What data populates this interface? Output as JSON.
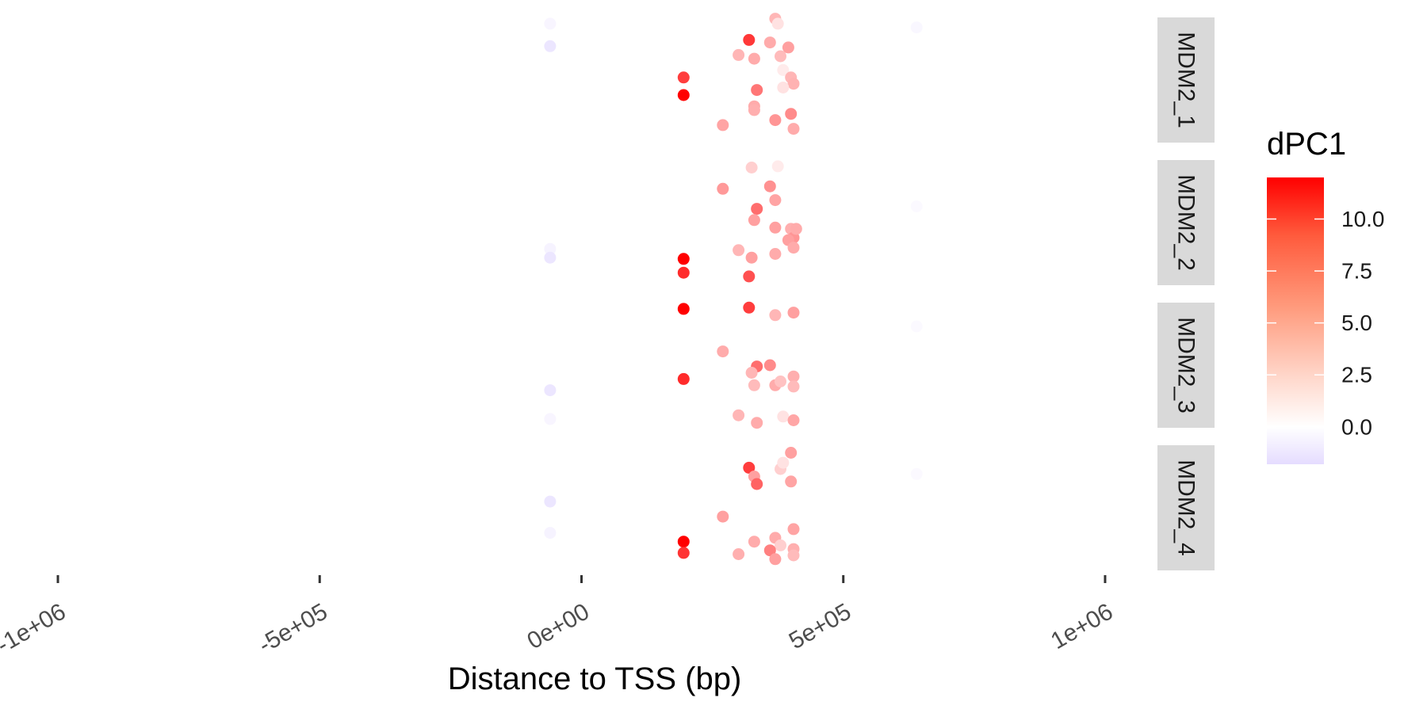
{
  "chart_data": {
    "type": "scatter",
    "xlabel": "Distance to TSS (bp)",
    "ylabel": "",
    "xlim": [
      -1050000,
      1100000
    ],
    "x_ticks": [
      -1000000,
      -500000,
      0,
      500000,
      1000000
    ],
    "x_tick_labels": [
      "-1e+06",
      "-5e+05",
      "0e+00",
      "5e+05",
      "1e+06"
    ],
    "grid": false,
    "legend": {
      "title": "dPC1",
      "placement": "right",
      "range": [
        -1.8,
        12
      ],
      "ticks": [
        0,
        2.5,
        5,
        7.5,
        10
      ],
      "tick_labels": [
        "0.0",
        "2.5",
        "5.0",
        "7.5",
        "10.0"
      ],
      "low_color": "#e5dcff",
      "mid_color": "#ffffff",
      "high_color": "#ff0000"
    },
    "facets": [
      {
        "label": "MDM2_1",
        "points": [
          {
            "x": -60000,
            "y": 0.95,
            "dpc1": -0.5
          },
          {
            "x": -60000,
            "y": 0.77,
            "dpc1": -1.3
          },
          {
            "x": 195000,
            "y": 0.52,
            "dpc1": 8.5
          },
          {
            "x": 195000,
            "y": 0.38,
            "dpc1": 12.0
          },
          {
            "x": 320000,
            "y": 0.82,
            "dpc1": 8.8
          },
          {
            "x": 300000,
            "y": 0.7,
            "dpc1": 2.5
          },
          {
            "x": 330000,
            "y": 0.67,
            "dpc1": 3.0
          },
          {
            "x": 360000,
            "y": 0.8,
            "dpc1": 3.0
          },
          {
            "x": 370000,
            "y": 0.99,
            "dpc1": 2.5
          },
          {
            "x": 375000,
            "y": 0.95,
            "dpc1": 0.8
          },
          {
            "x": 380000,
            "y": 0.69,
            "dpc1": 2.3
          },
          {
            "x": 385000,
            "y": 0.58,
            "dpc1": 0.5
          },
          {
            "x": 395000,
            "y": 0.76,
            "dpc1": 3.5
          },
          {
            "x": 400000,
            "y": 0.52,
            "dpc1": 2.5
          },
          {
            "x": 405000,
            "y": 0.47,
            "dpc1": 2.7
          },
          {
            "x": 385000,
            "y": 0.44,
            "dpc1": 0.8
          },
          {
            "x": 335000,
            "y": 0.42,
            "dpc1": 5.5
          },
          {
            "x": 330000,
            "y": 0.29,
            "dpc1": 3.0
          },
          {
            "x": 330000,
            "y": 0.26,
            "dpc1": 2.8
          },
          {
            "x": 370000,
            "y": 0.18,
            "dpc1": 4.0
          },
          {
            "x": 400000,
            "y": 0.23,
            "dpc1": 4.5
          },
          {
            "x": 405000,
            "y": 0.11,
            "dpc1": 3.0
          },
          {
            "x": 270000,
            "y": 0.14,
            "dpc1": 3.3
          },
          {
            "x": 640000,
            "y": 0.92,
            "dpc1": -0.4
          }
        ]
      },
      {
        "label": "MDM2_2",
        "points": [
          {
            "x": 325000,
            "y": 0.94,
            "dpc1": 1.5
          },
          {
            "x": 375000,
            "y": 0.95,
            "dpc1": 0.5
          },
          {
            "x": 270000,
            "y": 0.77,
            "dpc1": 3.8
          },
          {
            "x": 360000,
            "y": 0.79,
            "dpc1": 4.2
          },
          {
            "x": 370000,
            "y": 0.68,
            "dpc1": 3.3
          },
          {
            "x": 335000,
            "y": 0.61,
            "dpc1": 6.0
          },
          {
            "x": 330000,
            "y": 0.52,
            "dpc1": 3.5
          },
          {
            "x": 370000,
            "y": 0.46,
            "dpc1": 3.5
          },
          {
            "x": 400000,
            "y": 0.45,
            "dpc1": 2.8
          },
          {
            "x": 405000,
            "y": 0.38,
            "dpc1": 4.0
          },
          {
            "x": 410000,
            "y": 0.45,
            "dpc1": 3.0
          },
          {
            "x": 395000,
            "y": 0.36,
            "dpc1": 3.5
          },
          {
            "x": 405000,
            "y": 0.3,
            "dpc1": 3.0
          },
          {
            "x": 300000,
            "y": 0.28,
            "dpc1": 2.5
          },
          {
            "x": 325000,
            "y": 0.22,
            "dpc1": 3.5
          },
          {
            "x": 370000,
            "y": 0.25,
            "dpc1": 3.0
          },
          {
            "x": 320000,
            "y": 0.07,
            "dpc1": 7.5
          },
          {
            "x": -60000,
            "y": 0.29,
            "dpc1": -0.6
          },
          {
            "x": -60000,
            "y": 0.22,
            "dpc1": -1.3
          },
          {
            "x": 195000,
            "y": 0.21,
            "dpc1": 12.0
          },
          {
            "x": 195000,
            "y": 0.1,
            "dpc1": 9.5
          },
          {
            "x": 640000,
            "y": 0.63,
            "dpc1": -0.3
          }
        ]
      },
      {
        "label": "MDM2_3",
        "points": [
          {
            "x": 195000,
            "y": 0.95,
            "dpc1": 12.0
          },
          {
            "x": 320000,
            "y": 0.96,
            "dpc1": 8.5
          },
          {
            "x": 370000,
            "y": 0.9,
            "dpc1": 2.5
          },
          {
            "x": 405000,
            "y": 0.92,
            "dpc1": 3.5
          },
          {
            "x": 270000,
            "y": 0.61,
            "dpc1": 3.0
          },
          {
            "x": 335000,
            "y": 0.49,
            "dpc1": 6.0
          },
          {
            "x": 360000,
            "y": 0.5,
            "dpc1": 4.5
          },
          {
            "x": 325000,
            "y": 0.44,
            "dpc1": 2.5
          },
          {
            "x": 330000,
            "y": 0.34,
            "dpc1": 2.3
          },
          {
            "x": 370000,
            "y": 0.34,
            "dpc1": 3.0
          },
          {
            "x": 380000,
            "y": 0.37,
            "dpc1": 2.0
          },
          {
            "x": 405000,
            "y": 0.41,
            "dpc1": 2.8
          },
          {
            "x": 405000,
            "y": 0.33,
            "dpc1": 2.3
          },
          {
            "x": 195000,
            "y": 0.39,
            "dpc1": 9.5
          },
          {
            "x": -60000,
            "y": 0.3,
            "dpc1": -1.3
          },
          {
            "x": -60000,
            "y": 0.07,
            "dpc1": -0.5
          },
          {
            "x": 300000,
            "y": 0.1,
            "dpc1": 2.5
          },
          {
            "x": 335000,
            "y": 0.04,
            "dpc1": 3.0
          },
          {
            "x": 385000,
            "y": 0.09,
            "dpc1": 0.8
          },
          {
            "x": 405000,
            "y": 0.06,
            "dpc1": 3.2
          },
          {
            "x": 640000,
            "y": 0.81,
            "dpc1": -0.3
          }
        ]
      },
      {
        "label": "MDM2_4",
        "points": [
          {
            "x": 400000,
            "y": 0.94,
            "dpc1": 3.5
          },
          {
            "x": 320000,
            "y": 0.82,
            "dpc1": 8.5
          },
          {
            "x": 380000,
            "y": 0.81,
            "dpc1": 1.5
          },
          {
            "x": 385000,
            "y": 0.86,
            "dpc1": 0.8
          },
          {
            "x": 330000,
            "y": 0.75,
            "dpc1": 3.5
          },
          {
            "x": 335000,
            "y": 0.69,
            "dpc1": 6.5
          },
          {
            "x": 400000,
            "y": 0.71,
            "dpc1": 3.3
          },
          {
            "x": -60000,
            "y": 0.55,
            "dpc1": -1.3
          },
          {
            "x": 270000,
            "y": 0.43,
            "dpc1": 3.5
          },
          {
            "x": 405000,
            "y": 0.33,
            "dpc1": 3.3
          },
          {
            "x": -60000,
            "y": 0.3,
            "dpc1": -0.6
          },
          {
            "x": 195000,
            "y": 0.23,
            "dpc1": 12.0
          },
          {
            "x": 195000,
            "y": 0.14,
            "dpc1": 9.0
          },
          {
            "x": 300000,
            "y": 0.13,
            "dpc1": 2.8
          },
          {
            "x": 330000,
            "y": 0.23,
            "dpc1": 3.0
          },
          {
            "x": 370000,
            "y": 0.26,
            "dpc1": 3.0
          },
          {
            "x": 380000,
            "y": 0.2,
            "dpc1": 1.5
          },
          {
            "x": 360000,
            "y": 0.16,
            "dpc1": 5.0
          },
          {
            "x": 370000,
            "y": 0.09,
            "dpc1": 3.5
          },
          {
            "x": 405000,
            "y": 0.17,
            "dpc1": 2.8
          },
          {
            "x": 405000,
            "y": 0.12,
            "dpc1": 2.3
          },
          {
            "x": 640000,
            "y": 0.77,
            "dpc1": -0.3
          }
        ]
      }
    ]
  }
}
